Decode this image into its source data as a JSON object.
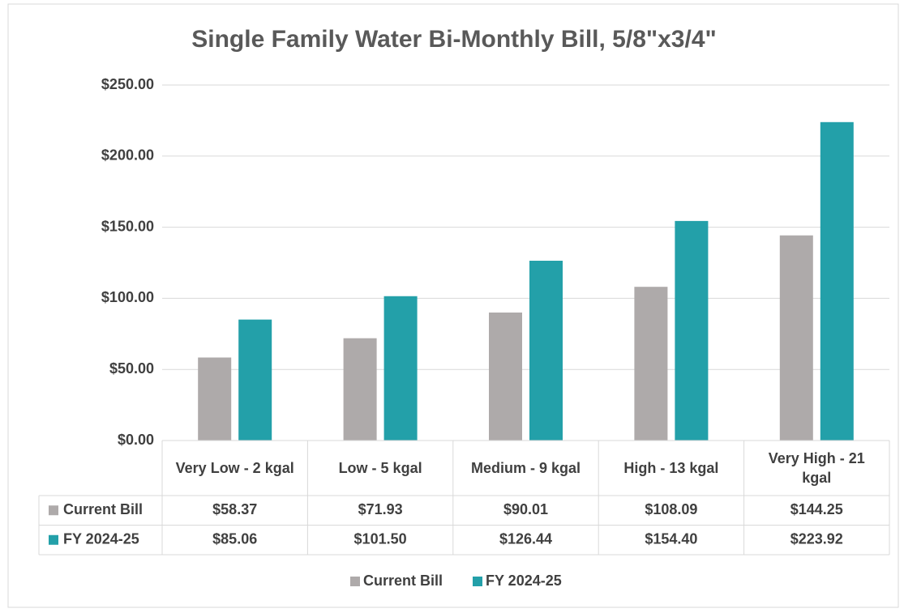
{
  "chart_data": {
    "type": "bar",
    "title": "Single Family Water Bi-Monthly Bill, 5/8\"x3/4\"",
    "categories": [
      "Very Low - 2 kgal",
      "Low - 5 kgal",
      "Medium - 9 kgal",
      "High - 13 kgal",
      "Very High - 21 kgal"
    ],
    "series": [
      {
        "name": "Current Bill",
        "color": "#aeaaaa",
        "values": [
          58.37,
          71.93,
          90.01,
          108.09,
          144.25
        ],
        "value_labels": [
          "$58.37",
          "$71.93",
          "$90.01",
          "$108.09",
          "$144.25"
        ]
      },
      {
        "name": "FY 2024-25",
        "color": "#23a0a9",
        "values": [
          85.06,
          101.5,
          126.44,
          154.4,
          223.92
        ],
        "value_labels": [
          "$85.06",
          "$101.50",
          "$126.44",
          "$154.40",
          "$223.92"
        ]
      }
    ],
    "ylim": [
      0,
      250
    ],
    "yticks": [
      {
        "value": 0,
        "label": "$0.00"
      },
      {
        "value": 50,
        "label": "$50.00"
      },
      {
        "value": 100,
        "label": "$100.00"
      },
      {
        "value": 150,
        "label": "$150.00"
      },
      {
        "value": 200,
        "label": "$200.00"
      },
      {
        "value": 250,
        "label": "$250.00"
      }
    ],
    "grid": true,
    "legend": "bottom",
    "data_table": true
  }
}
